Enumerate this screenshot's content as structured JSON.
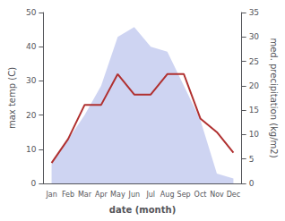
{
  "chart_data": {
    "type": "line",
    "xlabel": "date (month)",
    "ylabel": "max temp (C)",
    "y2label": "med. precipitation (kg/m2)",
    "categories": [
      "Jan",
      "Feb",
      "Mar",
      "Apr",
      "May",
      "Jun",
      "Jul",
      "Aug",
      "Sep",
      "Oct",
      "Nov",
      "Dec"
    ],
    "series": [
      {
        "type": "area",
        "axis": "y2",
        "color": "#c5cdf0",
        "values": [
          4,
          9,
          14,
          20,
          30,
          32,
          28,
          27,
          20,
          13,
          2,
          1
        ]
      },
      {
        "type": "line",
        "color": "#b03030",
        "values": [
          6,
          13,
          23,
          23,
          32,
          26,
          26,
          32,
          32,
          19,
          15,
          9
        ]
      }
    ],
    "ylim": [
      0,
      50
    ],
    "yticks": [
      0,
      10,
      20,
      30,
      40,
      50
    ],
    "y2lim": [
      0,
      35
    ],
    "y2ticks": [
      0,
      5,
      10,
      15,
      20,
      25,
      30,
      35
    ],
    "grid": false
  }
}
